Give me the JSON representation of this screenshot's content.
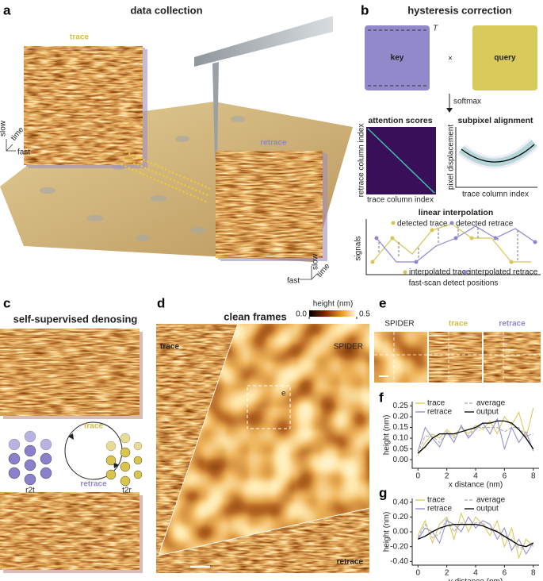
{
  "figure": {
    "panel_a": {
      "letter": "a",
      "title": "data collection",
      "trace": "trace",
      "retrace": "retrace",
      "axes_left": {
        "slow": "slow",
        "time": "time",
        "fast": "fast"
      },
      "axes_right": {
        "slow": "slow",
        "time": "time",
        "fast": "fast"
      }
    },
    "panel_b": {
      "letter": "b",
      "title": "hysteresis correction",
      "T": "T",
      "key": "key",
      "times": "×",
      "query": "query",
      "softmax": "softmax",
      "attention_title": "attention scores",
      "attention_ylabel": "retrace column index",
      "attention_xlabel": "trace column index",
      "alignment_title": "subpixel alignment",
      "alignment_ylabel": "pixel displacement",
      "alignment_xlabel": "trace column index",
      "interp_title": "linear interpolation",
      "legend": [
        "detected trace",
        "detected retrace",
        "interpolated trace",
        "interpolated retrace"
      ],
      "interp_ylabel": "signals",
      "interp_xlabel": "fast-scan detect positions"
    },
    "panel_c": {
      "letter": "c",
      "title": "self-supervised denosing",
      "trace": "trace",
      "retrace": "retrace",
      "r2t": "r2t",
      "t2r": "t2r"
    },
    "panel_d": {
      "letter": "d",
      "title": "clean frames",
      "colorbar": {
        "label": "height (nm)",
        "lim": [
          0,
          0.5
        ],
        "ticks": [
          {
            "value": 0,
            "label": "0.0"
          },
          0.5
        ]
      },
      "trace": "trace",
      "spider": "SPIDER",
      "inset": "e",
      "retrace": "retrace"
    },
    "panel_e": {
      "letter": "e",
      "labels": [
        "SPIDER",
        "trace",
        "retrace"
      ]
    },
    "panel_f": {
      "letter": "f"
    },
    "panel_g": {
      "letter": "g"
    }
  },
  "chart_data": [
    {
      "type": "line",
      "ylabel": "height (nm)",
      "xlabel": "x distance (nm)",
      "x": [
        0,
        0.5,
        1,
        1.5,
        2,
        2.5,
        3,
        3.5,
        4,
        4.5,
        5,
        5.5,
        6,
        6.5,
        7,
        7.5,
        8
      ],
      "xlim": [
        -0.4,
        8.4
      ],
      "xticks": [
        0,
        2,
        4,
        6,
        8
      ],
      "ylim": [
        -0.04,
        0.27
      ],
      "yticks": [
        {
          "value": 0,
          "label": "0.00"
        },
        {
          "value": 0.05,
          "label": "0.05"
        },
        {
          "value": 0.1,
          "label": "0.10"
        },
        {
          "value": 0.15,
          "label": "0.15"
        },
        {
          "value": 0.2,
          "label": "0.20"
        },
        {
          "value": 0.25,
          "label": "0.25"
        }
      ],
      "series": [
        {
          "name": "trace",
          "color": "#d8c552",
          "values": [
            0.02,
            0.08,
            0.12,
            0.1,
            0.14,
            0.11,
            0.15,
            0.12,
            0.16,
            0.14,
            0.18,
            0.12,
            0.2,
            0.16,
            0.22,
            0.1,
            0.24
          ]
        },
        {
          "name": "retrace",
          "color": "#8d87cf",
          "values": [
            0.04,
            0.15,
            0.1,
            0.06,
            0.13,
            0.08,
            0.16,
            0.1,
            0.14,
            0.17,
            0.12,
            0.19,
            0.05,
            0.15,
            0.08,
            0.13,
            0.04
          ]
        },
        {
          "name": "average",
          "color": "#aaaaaa",
          "dashed": true,
          "values": [
            0.03,
            0.11,
            0.11,
            0.08,
            0.13,
            0.1,
            0.15,
            0.11,
            0.15,
            0.15,
            0.15,
            0.15,
            0.13,
            0.15,
            0.15,
            0.11,
            0.12
          ]
        },
        {
          "name": "output",
          "color": "#000000",
          "values": [
            0.03,
            0.06,
            0.1,
            0.12,
            0.12,
            0.12,
            0.13,
            0.14,
            0.15,
            0.17,
            0.17,
            0.18,
            0.18,
            0.17,
            0.14,
            0.1,
            0.05
          ]
        }
      ]
    },
    {
      "type": "line",
      "ylabel": "height (nm)",
      "xlabel": "y distance (nm)",
      "x": [
        0,
        0.5,
        1,
        1.5,
        2,
        2.5,
        3,
        3.5,
        4,
        4.5,
        5,
        5.5,
        6,
        6.5,
        7,
        7.5,
        8
      ],
      "xlim": [
        -0.4,
        8.4
      ],
      "xticks": [
        0,
        2,
        4,
        6,
        8
      ],
      "ylim": [
        -0.45,
        0.45
      ],
      "yticks": [
        {
          "value": -0.4,
          "label": "-0.40"
        },
        {
          "value": -0.2,
          "label": "-0.20"
        },
        {
          "value": 0,
          "label": "0.00"
        },
        {
          "value": 0.2,
          "label": "0.20"
        },
        {
          "value": 0.4,
          "label": "0.40"
        }
      ],
      "series": [
        {
          "name": "trace",
          "color": "#d8c552",
          "values": [
            -0.05,
            0.15,
            -0.15,
            0.1,
            0.2,
            -0.1,
            0.25,
            0.0,
            0.2,
            0.1,
            -0.05,
            0.15,
            -0.2,
            0.05,
            -0.35,
            -0.1,
            -0.2
          ]
        },
        {
          "name": "retrace",
          "color": "#8d87cf",
          "values": [
            -0.1,
            0.05,
            0.0,
            -0.15,
            0.15,
            0.1,
            0.0,
            0.2,
            0.05,
            0.15,
            0.1,
            -0.1,
            0.05,
            -0.25,
            -0.1,
            -0.3,
            -0.15
          ]
        },
        {
          "name": "average",
          "color": "#aaaaaa",
          "dashed": true,
          "values": [
            -0.08,
            0.1,
            -0.08,
            -0.03,
            0.18,
            0.0,
            0.12,
            0.1,
            0.12,
            0.12,
            0.02,
            0.02,
            -0.08,
            -0.1,
            -0.22,
            -0.2,
            -0.18
          ]
        },
        {
          "name": "output",
          "color": "#000000",
          "values": [
            -0.1,
            -0.06,
            0.0,
            0.05,
            0.08,
            0.1,
            0.1,
            0.1,
            0.1,
            0.08,
            0.04,
            0.0,
            -0.06,
            -0.12,
            -0.18,
            -0.2,
            -0.15
          ]
        }
      ]
    }
  ]
}
